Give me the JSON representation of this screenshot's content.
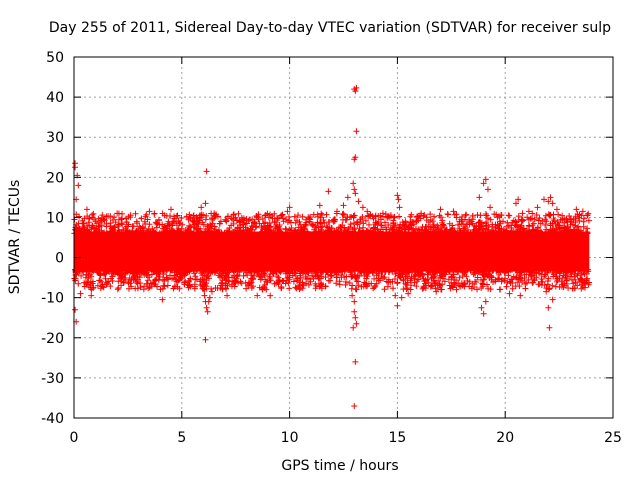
{
  "chart_data": {
    "type": "scatter",
    "title": "Day 255 of 2011, Sidereal Day-to-day VTEC variation (SDTVAR) for receiver sulp",
    "xlabel": "GPS time / hours",
    "ylabel": "SDTVAR / TECUs",
    "xlim": [
      0,
      25
    ],
    "ylim": [
      -40,
      50
    ],
    "xticks": [
      0,
      5,
      10,
      15,
      20,
      25
    ],
    "yticks": [
      -40,
      -30,
      -20,
      -10,
      0,
      10,
      20,
      30,
      40,
      50
    ],
    "grid": true,
    "marker": "+",
    "color": "#ff0000",
    "data_x_range": [
      0,
      23.9
    ],
    "dense_band": [
      -5,
      8
    ],
    "series": [
      {
        "name": "SDTVAR",
        "outliers": [
          [
            0.05,
            23.5
          ],
          [
            0.05,
            22.5
          ],
          [
            0.1,
            14.5
          ],
          [
            0.15,
            20.5
          ],
          [
            0.05,
            -13.0
          ],
          [
            0.1,
            -16.0
          ],
          [
            0.2,
            18.0
          ],
          [
            0.3,
            -9.0
          ],
          [
            0.6,
            12.0
          ],
          [
            0.8,
            -9.5
          ],
          [
            2.0,
            11.0
          ],
          [
            3.5,
            11.5
          ],
          [
            4.1,
            -10.5
          ],
          [
            4.5,
            12.0
          ],
          [
            4.8,
            10.5
          ],
          [
            5.9,
            12.5
          ],
          [
            6.1,
            13.5
          ],
          [
            6.15,
            21.5
          ],
          [
            6.05,
            -9.5
          ],
          [
            6.1,
            -11.0
          ],
          [
            6.15,
            -12.5
          ],
          [
            6.2,
            -13.5
          ],
          [
            6.25,
            -11.0
          ],
          [
            6.3,
            -10.0
          ],
          [
            6.4,
            -8.5
          ],
          [
            6.1,
            -20.5
          ],
          [
            6.5,
            11.0
          ],
          [
            7.1,
            -9.5
          ],
          [
            8.5,
            -9.5
          ],
          [
            9.1,
            -9.5
          ],
          [
            9.6,
            10.5
          ],
          [
            9.9,
            11.5
          ],
          [
            10.0,
            12.5
          ],
          [
            11.4,
            13.0
          ],
          [
            11.8,
            16.5
          ],
          [
            12.2,
            11.5
          ],
          [
            12.5,
            13.0
          ],
          [
            12.7,
            15.0
          ],
          [
            12.95,
            18.5
          ],
          [
            13.0,
            24.5
          ],
          [
            13.05,
            25.0
          ],
          [
            13.0,
            42.0
          ],
          [
            13.05,
            41.5
          ],
          [
            13.1,
            42.3
          ],
          [
            13.1,
            31.5
          ],
          [
            13.0,
            17.0
          ],
          [
            13.05,
            16.0
          ],
          [
            12.9,
            -9.5
          ],
          [
            13.0,
            -11.0
          ],
          [
            13.0,
            -13.5
          ],
          [
            12.95,
            -17.5
          ],
          [
            13.05,
            -15.0
          ],
          [
            13.1,
            -16.5
          ],
          [
            13.05,
            -26.0
          ],
          [
            13.0,
            -37.0
          ],
          [
            13.2,
            14.0
          ],
          [
            13.4,
            12.5
          ],
          [
            13.6,
            11.5
          ],
          [
            15.0,
            15.5
          ],
          [
            15.05,
            14.5
          ],
          [
            15.1,
            12.5
          ],
          [
            14.9,
            -9.5
          ],
          [
            15.0,
            -12.0
          ],
          [
            15.2,
            -10.0
          ],
          [
            15.5,
            -9.0
          ],
          [
            16.1,
            11.0
          ],
          [
            16.8,
            -8.5
          ],
          [
            17.0,
            12.0
          ],
          [
            17.6,
            11.5
          ],
          [
            18.8,
            15.0
          ],
          [
            19.0,
            18.5
          ],
          [
            19.1,
            19.5
          ],
          [
            19.2,
            17.0
          ],
          [
            18.9,
            -12.5
          ],
          [
            19.0,
            -14.0
          ],
          [
            19.1,
            -11.0
          ],
          [
            19.3,
            12.5
          ],
          [
            20.2,
            -9.0
          ],
          [
            20.5,
            13.5
          ],
          [
            20.6,
            14.5
          ],
          [
            20.8,
            11.0
          ],
          [
            20.7,
            -9.5
          ],
          [
            21.1,
            11.5
          ],
          [
            21.5,
            12.5
          ],
          [
            21.8,
            14.5
          ],
          [
            22.0,
            14.0
          ],
          [
            22.1,
            15.0
          ],
          [
            22.2,
            13.5
          ],
          [
            21.9,
            -8.5
          ],
          [
            22.0,
            -12.5
          ],
          [
            22.05,
            -17.5
          ],
          [
            22.2,
            -10.5
          ],
          [
            22.4,
            12.0
          ],
          [
            23.3,
            12.0
          ],
          [
            23.6,
            11.5
          ],
          [
            23.8,
            10.5
          ],
          [
            23.7,
            -7.5
          ]
        ]
      }
    ]
  }
}
